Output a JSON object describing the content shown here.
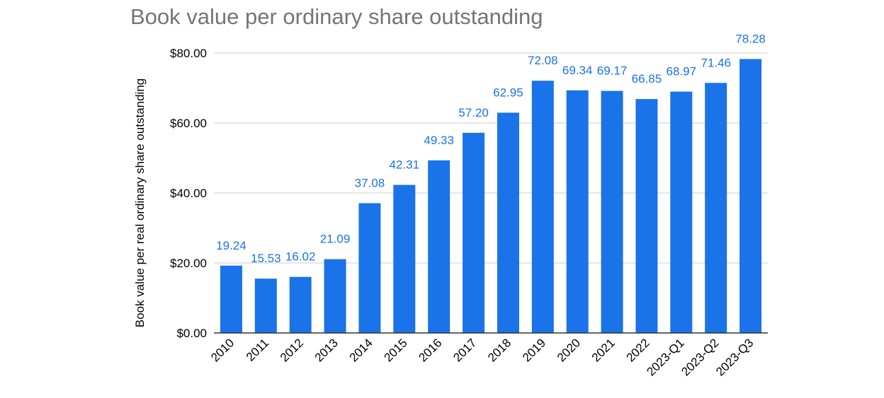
{
  "chart_data": {
    "type": "bar",
    "title": "Book value per ordinary share outstanding",
    "xlabel": "",
    "ylabel": "Book value per real ordinary share outstanding",
    "categories": [
      "2010",
      "2011",
      "2012",
      "2013",
      "2014",
      "2015",
      "2016",
      "2017",
      "2018",
      "2019",
      "2020",
      "2021",
      "2022",
      "2023-Q1",
      "2023-Q2",
      "2023-Q3"
    ],
    "values": [
      19.24,
      15.53,
      16.02,
      21.09,
      37.08,
      42.31,
      49.33,
      57.2,
      62.95,
      72.08,
      69.34,
      69.17,
      66.85,
      68.97,
      71.46,
      78.28
    ],
    "data_labels": [
      "19.24",
      "15.53",
      "16.02",
      "21.09",
      "37.08",
      "42.31",
      "49.33",
      "57.20",
      "62.95",
      "72.08",
      "69.34",
      "69.17",
      "66.85",
      "68.97",
      "71.46",
      "78.28"
    ],
    "ylim": [
      0,
      80
    ],
    "yticks": [
      0,
      20,
      40,
      60,
      80
    ],
    "ytick_labels": [
      "$0.00",
      "$20.00",
      "$40.00",
      "$60.00",
      "$80.00"
    ],
    "grid": true,
    "legend": "none",
    "colors": {
      "bar": "#1a73e8",
      "data_label": "#1a73e8",
      "title": "#757575",
      "axis_text": "#000000",
      "grid": "#cccccc",
      "axis_line": "#333333"
    }
  }
}
